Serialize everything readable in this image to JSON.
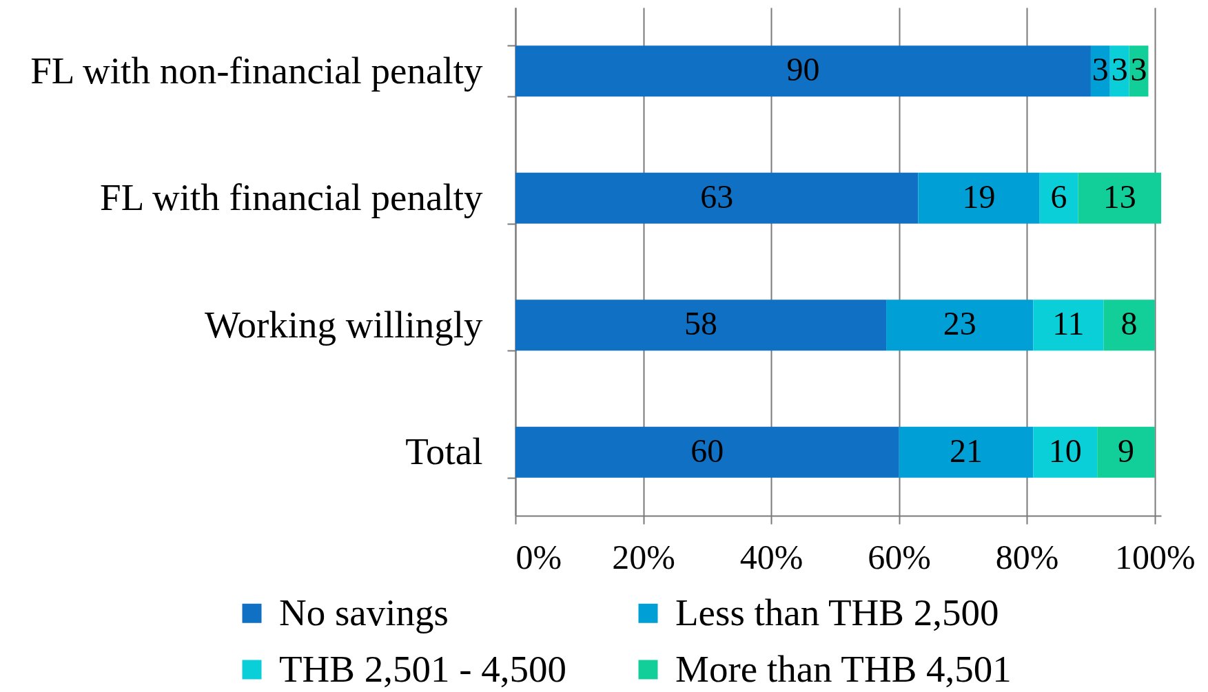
{
  "chart_data": {
    "type": "bar",
    "orientation": "horizontal",
    "stacked": true,
    "categories": [
      "FL with non-financial penalty",
      "FL with financial penalty",
      "Working willingly",
      "Total"
    ],
    "series": [
      {
        "name": "No savings",
        "color": "#1070c4",
        "values": [
          90,
          63,
          58,
          60
        ]
      },
      {
        "name": "Less than THB 2,500",
        "color": "#009fd6",
        "values": [
          3,
          19,
          23,
          21
        ]
      },
      {
        "name": "THB 2,501 - 4,500",
        "color": "#0bcfd8",
        "values": [
          3,
          6,
          11,
          10
        ]
      },
      {
        "name": "More than THB 4,501",
        "color": "#12cf9a",
        "values": [
          3,
          13,
          8,
          9
        ]
      }
    ],
    "xlim": [
      0,
      101
    ],
    "xticks": [
      {
        "value": 0,
        "label": "0%"
      },
      {
        "value": 20,
        "label": "20%"
      },
      {
        "value": 40,
        "label": "40%"
      },
      {
        "value": 60,
        "label": "60%"
      },
      {
        "value": 80,
        "label": "80%"
      },
      {
        "value": 100,
        "label": "100%"
      }
    ],
    "grid": "x",
    "legend": "bottom",
    "data_labels": true
  }
}
